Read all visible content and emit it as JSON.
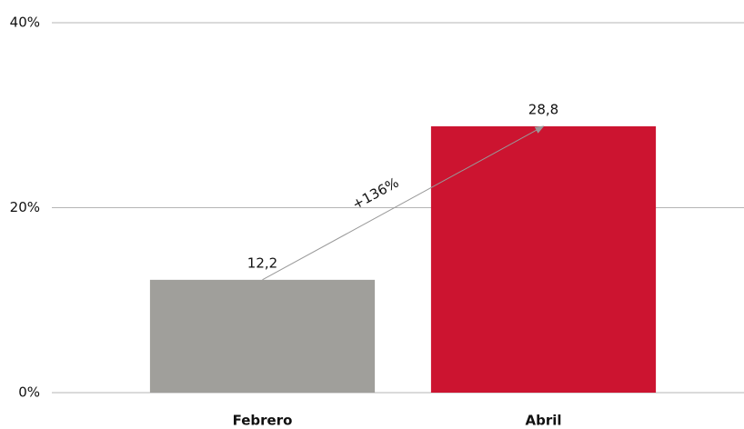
{
  "chart_data": {
    "type": "bar",
    "categories": [
      "Febrero",
      "Abril"
    ],
    "values": [
      12.2,
      28.8
    ],
    "value_labels": [
      "12,2",
      "28,8"
    ],
    "colors": [
      "#a09f9b",
      "#cc1430"
    ],
    "ylim": [
      0,
      40
    ],
    "yticks": [
      {
        "value": 0,
        "label": "0%"
      },
      {
        "value": 20,
        "label": "20%"
      },
      {
        "value": 40,
        "label": "40%"
      }
    ],
    "grid": true,
    "annotation": "+136%"
  }
}
